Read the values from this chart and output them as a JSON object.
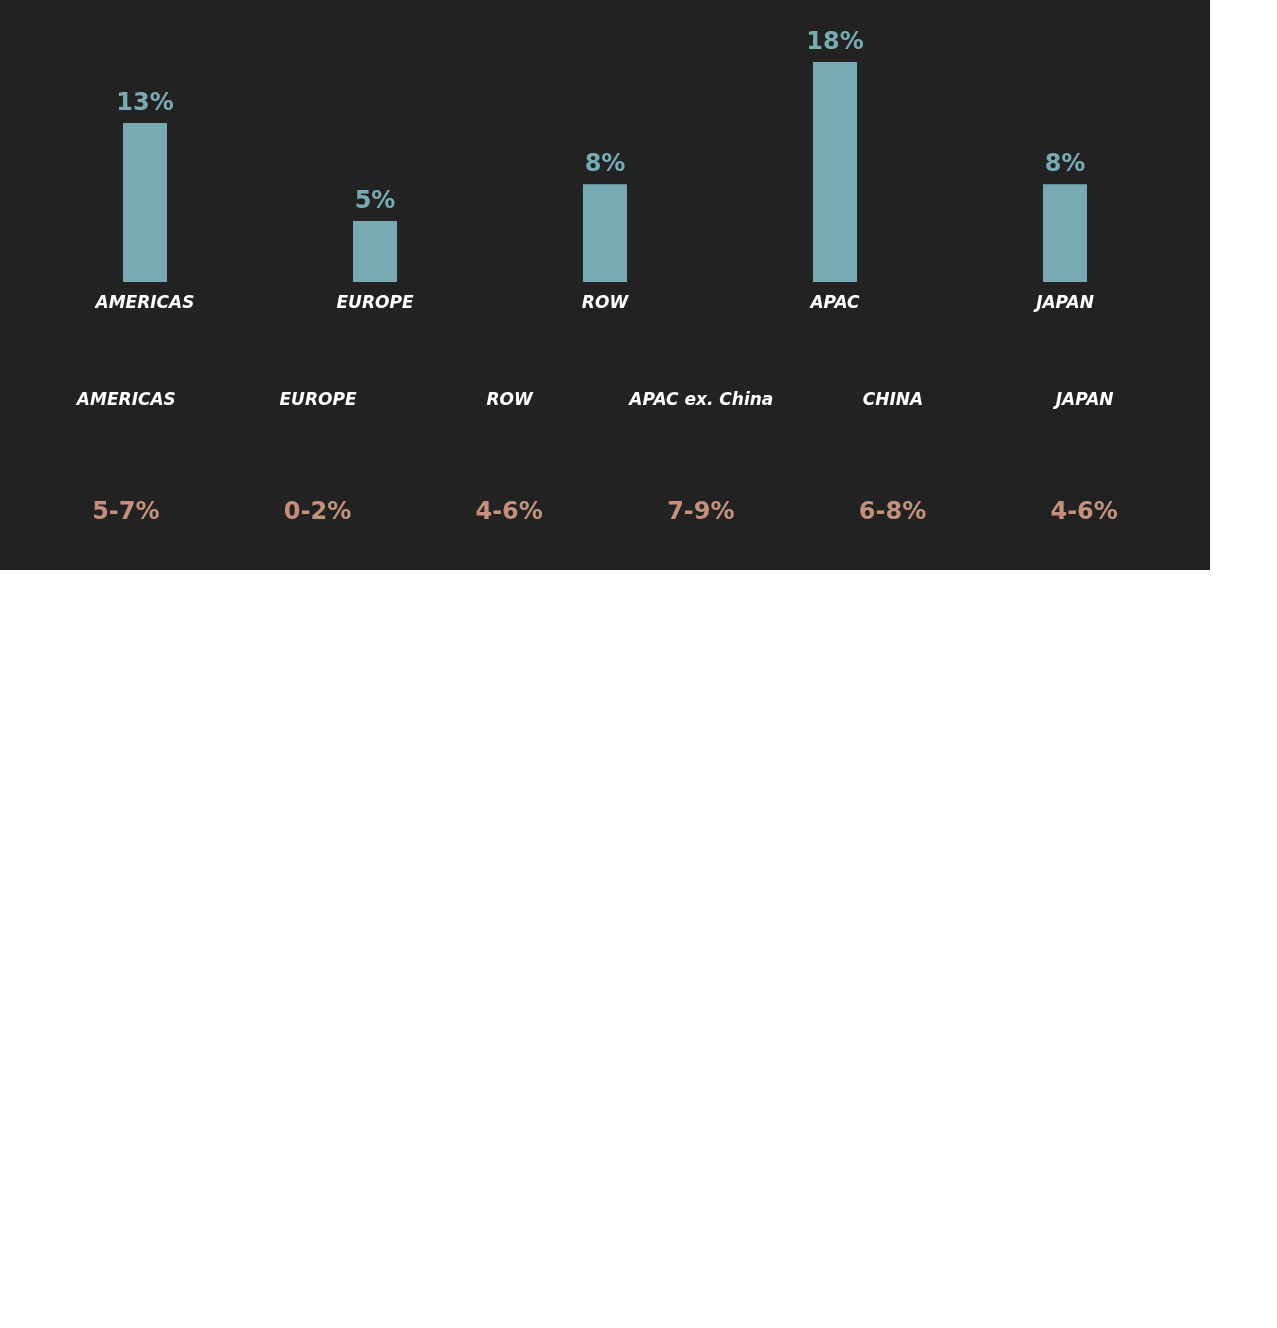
{
  "chart_data": [
    {
      "type": "bar",
      "categories": [
        "AMERICAS",
        "EUROPE",
        "ROW",
        "APAC",
        "JAPAN"
      ],
      "values": [
        13,
        5,
        8,
        18,
        8
      ],
      "value_labels": [
        "13%",
        "5%",
        "8%",
        "18%",
        "8%"
      ],
      "color": "#78aab4",
      "tick_labels": "x"
    },
    {
      "type": "other",
      "categories": [
        "AMERICAS",
        "EUROPE",
        "ROW",
        "APAC ex. China",
        "CHINA",
        "JAPAN"
      ],
      "annotations": [
        "5-7%",
        "0-2%",
        "4-6%",
        "7-9%",
        "6-8%",
        "4-6%"
      ],
      "color": "#c4907c"
    }
  ]
}
